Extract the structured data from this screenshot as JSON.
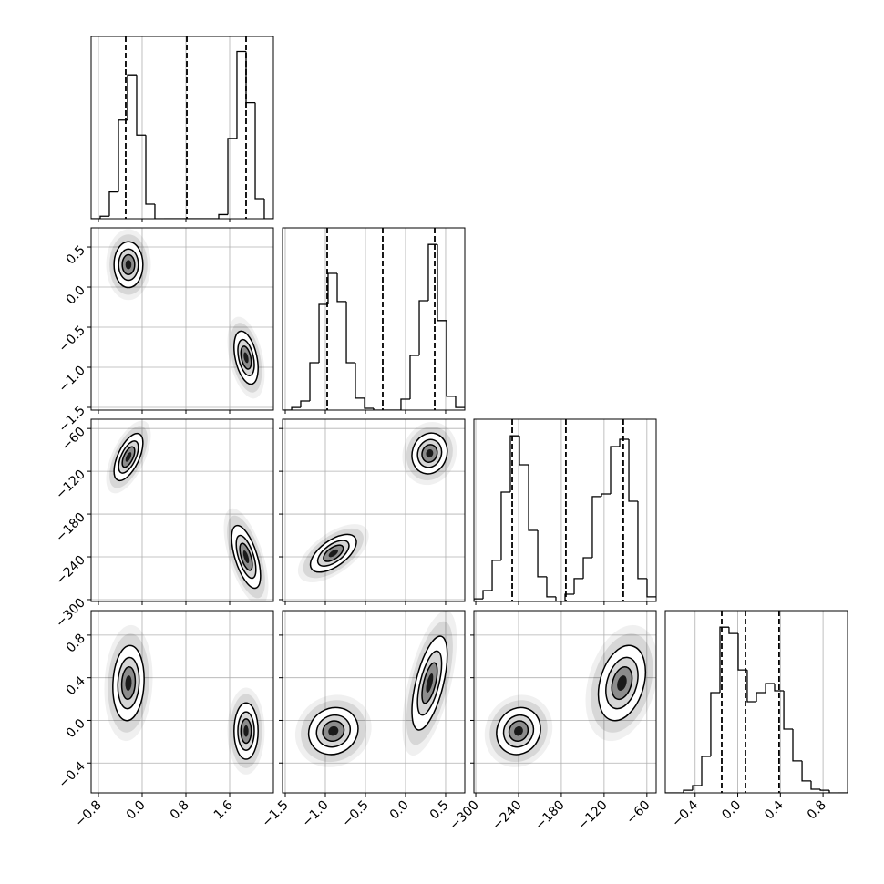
{
  "chart_data": {
    "type": "corner",
    "params": [
      {
        "xlim": [
          -0.933,
          2.4
        ],
        "xticks": [
          {
            "value": -0.8,
            "label": "−0.8"
          },
          {
            "value": 0,
            "label": "0.0"
          },
          0.8,
          1.6
        ],
        "hist": {
          "ylim": [
            0,
            1090
          ],
          "bins": [
            -0.933,
            -0.767,
            -0.6,
            -0.433,
            -0.267,
            -0.1,
            0.067,
            0.233,
            0.4,
            0.567,
            0.733,
            0.9,
            1.067,
            1.233,
            1.4,
            1.567,
            1.733,
            1.9,
            2.067,
            2.233,
            2.4
          ],
          "counts": [
            0,
            15,
            160,
            590,
            860,
            500,
            87,
            0,
            0,
            0,
            0,
            0,
            0,
            0,
            25,
            480,
            1000,
            694,
            120,
            0
          ]
        },
        "quantiles": [
          -0.3,
          0.817,
          1.9
        ],
        "joint": []
      },
      {
        "xlim": [
          -1.534,
          0.739
        ],
        "xticks": [
          {
            "value": -1.5,
            "label": "−1.5"
          },
          {
            "value": -1.0,
            "label": "−1.0"
          },
          {
            "value": -0.5,
            "label": "−0.5"
          },
          {
            "value": 0,
            "label": "0.0"
          },
          0.5
        ],
        "hist": {
          "ylim": [
            0,
            1100
          ],
          "bins": [
            -1.534,
            -1.42,
            -1.307,
            -1.193,
            -1.079,
            -0.966,
            -0.852,
            -0.738,
            -0.625,
            -0.511,
            -0.398,
            -0.284,
            -0.17,
            -0.057,
            0.057,
            0.171,
            0.284,
            0.398,
            0.512,
            0.625,
            0.739
          ],
          "counts": [
            0,
            16,
            55,
            286,
            638,
            825,
            655,
            286,
            72,
            11,
            0,
            0,
            0,
            66,
            330,
            660,
            1000,
            540,
            83,
            16
          ]
        },
        "quantiles": [
          -0.977,
          -0.284,
          0.364
        ],
        "joint": [
          [
            {
              "center": [
                -0.25,
                0.28
              ],
              "sd": [
                0.12,
                0.13
              ],
              "rho": 0.0
            },
            {
              "center": [
                1.9,
                -0.88
              ],
              "sd": [
                0.1,
                0.15
              ],
              "rho": -0.4
            }
          ]
        ]
      },
      {
        "xlim": [
          -302.6,
          -47
        ],
        "xticks": [
          {
            "value": -300,
            "label": "−300"
          },
          {
            "value": -240,
            "label": "−240"
          },
          {
            "value": -180,
            "label": "−180"
          },
          {
            "value": -120,
            "label": "−120"
          },
          {
            "value": -60,
            "label": "−60"
          }
        ],
        "hist": {
          "ylim": [
            0,
            1100
          ],
          "bins": [
            -302.6,
            -289.8,
            -277.0,
            -264.3,
            -251.5,
            -238.7,
            -225.9,
            -213.1,
            -200.4,
            -187.6,
            -174.8,
            -162.0,
            -149.2,
            -136.5,
            -123.7,
            -110.9,
            -98.1,
            -85.3,
            -72.6,
            -59.8,
            -47.0
          ],
          "counts": [
            16,
            66,
            248,
            660,
            1000,
            825,
            429,
            149,
            28,
            0,
            44,
            138,
            264,
            633,
            649,
            935,
            979,
            605,
            138,
            28
          ]
        },
        "quantiles": [
          -248.9,
          -173.6,
          -93.1
        ],
        "joint": [
          [
            {
              "center": [
                -0.25,
                -100
              ],
              "sd": [
                0.12,
                15
              ],
              "rho": 0.6
            },
            {
              "center": [
                1.9,
                -240
              ],
              "sd": [
                0.12,
                20
              ],
              "rho": -0.6
            }
          ],
          [
            {
              "center": [
                -0.9,
                -235
              ],
              "sd": [
                0.13,
                12
              ],
              "rho": 0.6
            },
            {
              "center": [
                0.3,
                -95
              ],
              "sd": [
                0.1,
                13
              ],
              "rho": 0.1
            }
          ]
        ]
      },
      {
        "xlim": [
          -0.68,
          1.03
        ],
        "xticks": [
          {
            "value": -0.4,
            "label": "−0.4"
          },
          {
            "value": 0,
            "label": "0.0"
          },
          0.4,
          0.8
        ],
        "hist": {
          "ylim": [
            0,
            1100
          ],
          "bins": [
            -0.68,
            -0.595,
            -0.509,
            -0.424,
            -0.338,
            -0.253,
            -0.167,
            -0.082,
            0.004,
            0.089,
            0.175,
            0.261,
            0.346,
            0.432,
            0.517,
            0.603,
            0.688,
            0.774,
            0.859,
            0.945,
            1.03
          ],
          "counts": [
            0,
            0,
            16,
            44,
            220,
            605,
            1000,
            962,
            742,
            550,
            605,
            660,
            616,
            385,
            193,
            72,
            22,
            16,
            0,
            0
          ]
        },
        "quantiles": [
          -0.15,
          0.072,
          0.388
        ],
        "joint": [
          [
            {
              "center": [
                -0.25,
                0.35
              ],
              "sd": [
                0.13,
                0.16
              ],
              "rho": 0.1
            },
            {
              "center": [
                1.9,
                -0.1
              ],
              "sd": [
                0.1,
                0.12
              ],
              "rho": 0.0
            }
          ],
          [
            {
              "center": [
                -0.9,
                -0.1
              ],
              "sd": [
                0.14,
                0.1
              ],
              "rho": 0.1
            },
            {
              "center": [
                0.3,
                0.35
              ],
              "sd": [
                0.1,
                0.2
              ],
              "rho": 0.6
            }
          ],
          [
            {
              "center": [
                -240,
                -0.1
              ],
              "sd": [
                14,
                0.1
              ],
              "rho": 0.1
            },
            {
              "center": [
                -95,
                0.35
              ],
              "sd": [
                15,
                0.16
              ],
              "rho": 0.3
            }
          ]
        ]
      }
    ]
  }
}
